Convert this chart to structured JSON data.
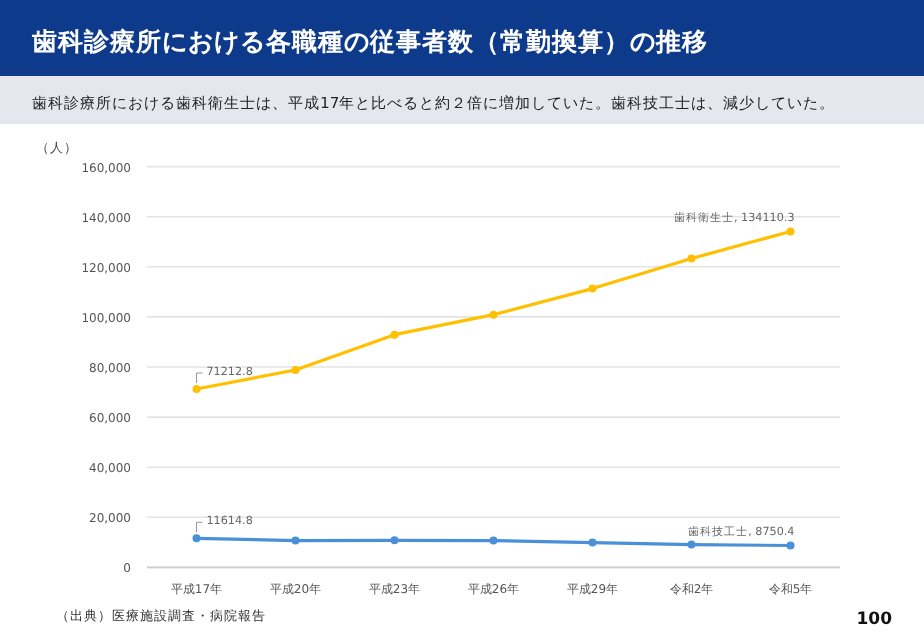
{
  "chart_data": {
    "type": "line",
    "title": "歯科診療所における各職種の従事者数（常勤換算）の推移",
    "subtitle": "歯科診療所における歯科衛生士は、平成17年と比べると約２倍に増加していた。歯科技工士は、減少していた。",
    "ylabel": "（人）",
    "annotations": [
      "（出典）医療施設調査・病院報告",
      "100"
    ],
    "categories": [
      "平成17年",
      "平成20年",
      "平成23年",
      "平成26年",
      "平成29年",
      "令和2年",
      "令和5年"
    ],
    "series": [
      {
        "color": "#ffc000",
        "values": [
          71212.8,
          78800,
          92900,
          100900,
          111300,
          123300,
          134110.3
        ],
        "value_labels": [
          "71212.8",
          null,
          null,
          null,
          null,
          null,
          "歯科衛生士, 134110.3"
        ]
      },
      {
        "color": "#4a90d9",
        "values": [
          11614.8,
          10700,
          10800,
          10700,
          9900,
          9100,
          8750.4
        ],
        "value_labels": [
          "11614.8",
          null,
          null,
          null,
          null,
          null,
          "歯科技工士, 8750.4"
        ]
      }
    ],
    "ylim": [
      0,
      160000
    ],
    "yticks": [
      0,
      {
        "value": 20000,
        "label": "20,000"
      },
      {
        "value": 40000,
        "label": "40,000"
      },
      {
        "value": 60000,
        "label": "60,000"
      },
      {
        "value": 80000,
        "label": "80,000"
      },
      {
        "value": 100000,
        "label": "100,000"
      },
      {
        "value": 120000,
        "label": "120,000"
      },
      {
        "value": 140000,
        "label": "140,000"
      },
      {
        "value": 160000,
        "label": "160,000"
      }
    ],
    "grid": "y",
    "marker": "circle",
    "line_style": "solid"
  }
}
